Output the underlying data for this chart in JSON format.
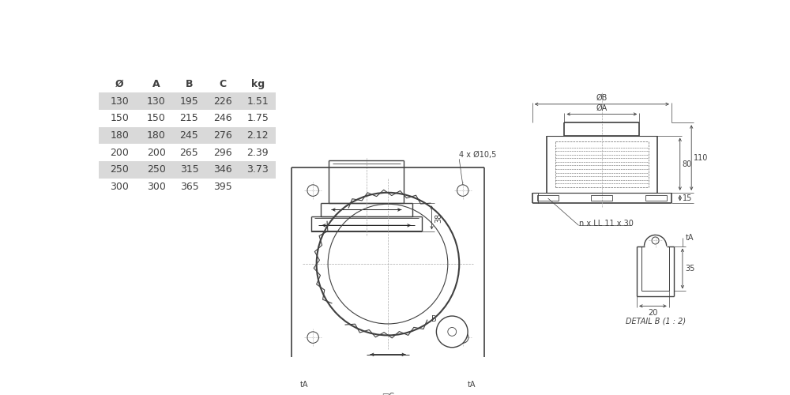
{
  "table_headers": [
    "Ø",
    "A",
    "B",
    "C",
    "kg"
  ],
  "table_rows": [
    [
      "130",
      "130",
      "195",
      "226",
      "1.51"
    ],
    [
      "150",
      "150",
      "215",
      "246",
      "1.75"
    ],
    [
      "180",
      "180",
      "245",
      "276",
      "2.12"
    ],
    [
      "200",
      "200",
      "265",
      "296",
      "2.39"
    ],
    [
      "250",
      "250",
      "315",
      "346",
      "3.73"
    ],
    [
      "300",
      "300",
      "365",
      "395",
      ""
    ]
  ],
  "shaded_rows": [
    0,
    2,
    4
  ],
  "row_bg_color": "#d9d9d9",
  "line_color": "#404040",
  "dim_color": "#404040",
  "text_color": "#404040",
  "bg_color": "#ffffff",
  "header_fontsize": 9,
  "cell_fontsize": 9,
  "dim_fontsize": 7,
  "annotation_fontsize": 7
}
